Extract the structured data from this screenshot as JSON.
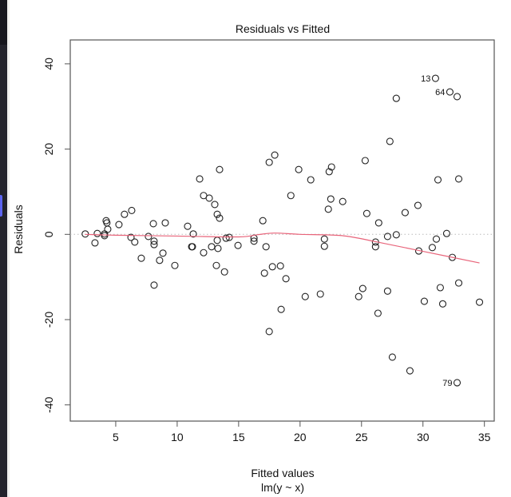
{
  "chart_data": {
    "type": "scatter",
    "title": "Residuals vs Fitted",
    "xlabel": "Fitted values",
    "sublabel": "lm(y ~ x)",
    "ylabel": "Residuals",
    "xlim": [
      1.3,
      35.8
    ],
    "ylim": [
      -43.8,
      45.6
    ],
    "x_ticks": [
      5,
      10,
      15,
      20,
      25,
      30,
      35
    ],
    "y_ticks": [
      -40,
      -20,
      0,
      20,
      40
    ],
    "grid": false,
    "reference_line": {
      "y": 0,
      "style": "dotted",
      "color": "#bbbbbb"
    },
    "smooth_color": "#e8647a",
    "point_color": "#222222",
    "points": [
      [
        2.52,
        0.1
      ],
      [
        3.31,
        -2.0
      ],
      [
        3.5,
        0.2
      ],
      [
        4.09,
        0.1
      ],
      [
        4.09,
        -0.3
      ],
      [
        4.22,
        3.2
      ],
      [
        4.28,
        2.7
      ],
      [
        4.35,
        1.2
      ],
      [
        5.26,
        2.3
      ],
      [
        5.71,
        4.7
      ],
      [
        6.3,
        5.6
      ],
      [
        6.24,
        -0.7
      ],
      [
        6.55,
        -1.8
      ],
      [
        7.08,
        -5.6
      ],
      [
        7.66,
        -0.5
      ],
      [
        8.06,
        2.5
      ],
      [
        8.12,
        -1.6
      ],
      [
        8.12,
        -2.4
      ],
      [
        8.12,
        -11.9
      ],
      [
        8.57,
        -6.1
      ],
      [
        8.84,
        -4.4
      ],
      [
        9.03,
        2.7
      ],
      [
        9.81,
        -7.3
      ],
      [
        10.85,
        1.9
      ],
      [
        11.31,
        0.1
      ],
      [
        11.18,
        -2.9
      ],
      [
        11.24,
        -2.9
      ],
      [
        12.15,
        -4.3
      ],
      [
        11.83,
        13.0
      ],
      [
        12.15,
        9.1
      ],
      [
        12.61,
        8.5
      ],
      [
        12.8,
        -2.9
      ],
      [
        13.06,
        7.0
      ],
      [
        13.26,
        4.7
      ],
      [
        13.45,
        3.8
      ],
      [
        13.45,
        15.2
      ],
      [
        13.26,
        -1.4
      ],
      [
        13.32,
        -3.3
      ],
      [
        13.19,
        -7.3
      ],
      [
        13.85,
        -8.8
      ],
      [
        13.98,
        -0.9
      ],
      [
        14.24,
        -0.7
      ],
      [
        14.95,
        -2.6
      ],
      [
        16.25,
        -0.9
      ],
      [
        16.25,
        -1.6
      ],
      [
        16.97,
        3.2
      ],
      [
        17.23,
        -2.9
      ],
      [
        17.1,
        -9.1
      ],
      [
        17.49,
        16.9
      ],
      [
        17.94,
        18.6
      ],
      [
        17.75,
        -7.6
      ],
      [
        18.4,
        -7.4
      ],
      [
        18.46,
        -17.6
      ],
      [
        18.85,
        -10.4
      ],
      [
        17.49,
        -22.8
      ],
      [
        19.25,
        9.1
      ],
      [
        19.89,
        15.2
      ],
      [
        20.42,
        -14.6
      ],
      [
        20.87,
        12.8
      ],
      [
        21.65,
        -14.0
      ],
      [
        21.98,
        -1.1
      ],
      [
        21.98,
        -2.8
      ],
      [
        22.3,
        5.9
      ],
      [
        22.37,
        14.7
      ],
      [
        22.5,
        8.3
      ],
      [
        22.56,
        15.8
      ],
      [
        23.47,
        7.7
      ],
      [
        24.77,
        -14.6
      ],
      [
        25.1,
        -12.7
      ],
      [
        25.3,
        17.3
      ],
      [
        25.43,
        4.9
      ],
      [
        26.14,
        -1.8
      ],
      [
        26.14,
        -2.9
      ],
      [
        26.4,
        2.7
      ],
      [
        26.34,
        -18.5
      ],
      [
        27.12,
        -0.5
      ],
      [
        27.12,
        -13.3
      ],
      [
        27.31,
        21.8
      ],
      [
        27.51,
        -28.8
      ],
      [
        27.83,
        31.9
      ],
      [
        27.83,
        -0.1
      ],
      [
        28.55,
        5.1
      ],
      [
        28.94,
        -32.0
      ],
      [
        29.59,
        6.8
      ],
      [
        29.66,
        -3.9
      ],
      [
        30.11,
        -15.7
      ],
      [
        30.76,
        -3.1
      ],
      [
        31.02,
        36.6
      ],
      [
        31.09,
        -1.1
      ],
      [
        31.22,
        12.8
      ],
      [
        31.41,
        -12.5
      ],
      [
        31.61,
        -16.3
      ],
      [
        31.93,
        0.2
      ],
      [
        32.19,
        33.4
      ],
      [
        32.39,
        -5.4
      ],
      [
        32.78,
        32.3
      ],
      [
        32.78,
        -34.8
      ],
      [
        32.91,
        13.0
      ],
      [
        32.91,
        -11.4
      ],
      [
        34.6,
        -15.9
      ]
    ],
    "point_labels": [
      {
        "text": "13",
        "x": 31.02,
        "y": 36.6
      },
      {
        "text": "64",
        "x": 32.19,
        "y": 33.4
      },
      {
        "text": "79",
        "x": 32.78,
        "y": -34.8
      }
    ],
    "smooth": [
      [
        2.5,
        0.0
      ],
      [
        5,
        -0.2
      ],
      [
        10,
        -0.4
      ],
      [
        15,
        -0.6
      ],
      [
        16.5,
        -0.1
      ],
      [
        17.9,
        0.3
      ],
      [
        20,
        0.0
      ],
      [
        23.4,
        -0.3
      ],
      [
        26.3,
        -1.8
      ],
      [
        30.2,
        -4.1
      ],
      [
        34.6,
        -6.7
      ]
    ]
  }
}
